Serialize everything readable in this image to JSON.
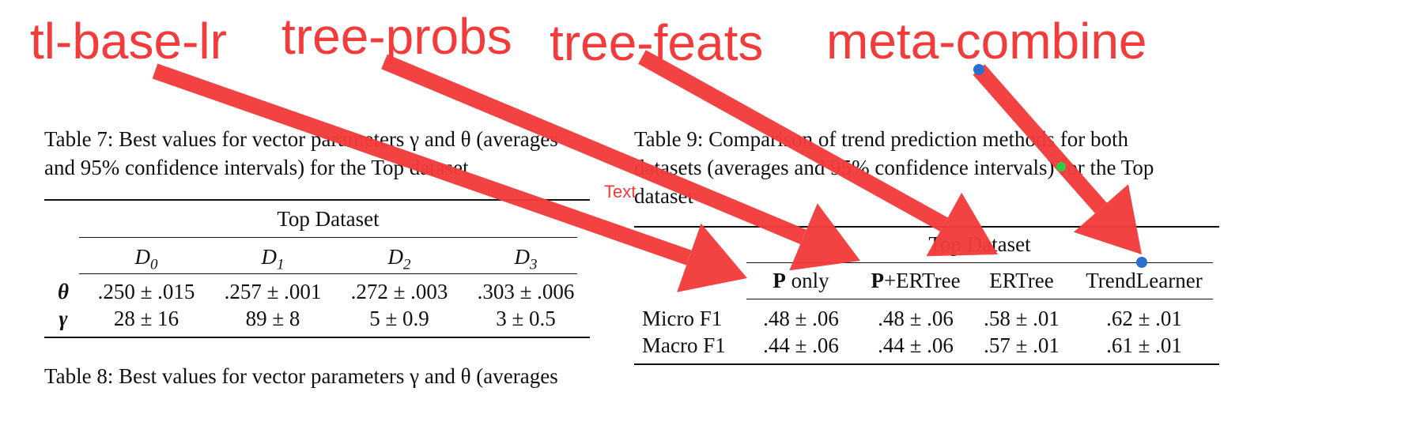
{
  "annotations": {
    "labels": [
      {
        "text": "tl-base-lr"
      },
      {
        "text": "tree-probs"
      },
      {
        "text": "tree-feats"
      },
      {
        "text": "meta-combine"
      }
    ],
    "text_marker": "Text",
    "arrow_color": "#f23b3b",
    "handle_color": "#2d6fd1",
    "handle_color_alt": "#2ecc40"
  },
  "table7": {
    "caption_line1": "Table 7: Best values for vector parameters γ and θ (averages",
    "caption_line2": "and 95% confidence intervals) for the Top dataset",
    "group_header": "Top Dataset",
    "columns": [
      "D0",
      "D1",
      "D2",
      "D3"
    ],
    "rows": [
      {
        "label": "θ",
        "values": [
          ".250 ± .015",
          ".257 ± .001",
          ".272 ± .003",
          ".303 ± .006"
        ]
      },
      {
        "label": "γ",
        "values": [
          "28 ± 16",
          "89 ± 8",
          "5 ± 0.9",
          "3 ± 0.5"
        ]
      }
    ]
  },
  "table8": {
    "caption_line1": "Table 8: Best values for vector parameters γ and θ (averages"
  },
  "table9": {
    "caption_line1": "Table 9: Comparison of trend prediction methods for both",
    "caption_line2": "datasets (averages and 95% confidence intervals) for the Top",
    "caption_line3": "dataset",
    "group_header": "Top Dataset",
    "columns": [
      "P only",
      "P+ERTree",
      "ERTree",
      "TrendLearner"
    ],
    "rows": [
      {
        "label": "Micro F1",
        "values": [
          ".48 ± .06",
          ".48 ± .06",
          ".58 ± .01",
          ".62 ± .01"
        ]
      },
      {
        "label": "Macro F1",
        "values": [
          ".44 ± .06",
          ".44 ± .06",
          ".57 ± .01",
          ".61 ± .01"
        ]
      }
    ]
  }
}
